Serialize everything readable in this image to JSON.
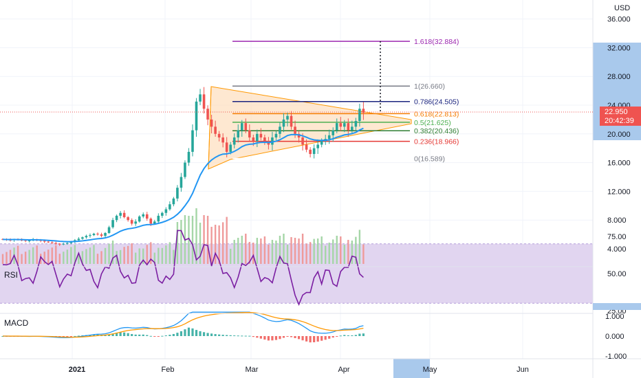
{
  "currency": "USD",
  "price": {
    "y_ticks": [
      "36.000",
      "32.000",
      "28.000",
      "24.000",
      "20.000",
      "16.000",
      "12.000",
      "8.000",
      "4.000"
    ],
    "highlight_range_labels": [
      "32.000",
      "24.000",
      "20.000"
    ],
    "current_price": "22.950",
    "countdown": "20:42:39"
  },
  "rsi": {
    "label": "RSI",
    "ticks": [
      "75.00",
      "50.00",
      "25.00"
    ],
    "band": [
      30,
      70
    ]
  },
  "macd": {
    "label": "MACD",
    "ticks": [
      "1.000",
      "0.000",
      "-1.000"
    ]
  },
  "x_ticks": [
    "2021",
    "Feb",
    "Mar",
    "Apr",
    "May",
    "Jun"
  ],
  "fib_levels": [
    {
      "label": "1.618(32.884)",
      "value": 32.884,
      "color": "#9c27b0"
    },
    {
      "label": "1(26.660)",
      "value": 26.66,
      "color": "#787b86"
    },
    {
      "label": "0.786(24.505)",
      "value": 24.505,
      "color": "#1a237e"
    },
    {
      "label": "0.618(22.813)",
      "value": 22.813,
      "color": "#f57c00"
    },
    {
      "label": "0.5(21.625)",
      "value": 21.625,
      "color": "#4caf50"
    },
    {
      "label": "0.382(20.436)",
      "value": 20.436,
      "color": "#2e7d32"
    },
    {
      "label": "0.236(18.966)",
      "value": 18.966,
      "color": "#e53935"
    },
    {
      "label": "0(16.589)",
      "value": 16.589,
      "color": "#ffffff"
    }
  ],
  "colors": {
    "up": "#26a69a",
    "down": "#ef5350",
    "ma": "#2196f3",
    "rsi": "#7b1fa2",
    "macd": "#2196f3",
    "signal": "#ff9800",
    "triangle": "#ff9800"
  },
  "chart_data": {
    "type": "candlestick",
    "closes": [
      5.3,
      5.25,
      5.2,
      5.3,
      5.25,
      5.2,
      5.1,
      5.15,
      5.3,
      5.2,
      5.1,
      5.0,
      4.9,
      4.8,
      4.7,
      4.6,
      4.7,
      4.8,
      5.0,
      5.2,
      5.4,
      5.6,
      5.8,
      5.9,
      6.1,
      6.0,
      5.8,
      6.2,
      7.0,
      8.0,
      8.6,
      9.0,
      8.4,
      8.0,
      7.5,
      7.8,
      8.5,
      8.8,
      8.2,
      7.5,
      7.8,
      8.6,
      9.0,
      9.5,
      10.2,
      11.0,
      12.5,
      14.0,
      16.0,
      17.5,
      20.5,
      24.5,
      25.5,
      23.5,
      22.0,
      21.0,
      20.0,
      19.5,
      18.8,
      17.5,
      18.5,
      19.5,
      20.5,
      21.5,
      20.5,
      19.5,
      19.0,
      20.0,
      19.5,
      19.0,
      18.5,
      19.5,
      20.0,
      21.0,
      22.0,
      22.5,
      21.0,
      20.0,
      19.5,
      18.5,
      17.8,
      17.2,
      18.0,
      18.5,
      19.0,
      19.3,
      19.8,
      20.5,
      21.5,
      21.0,
      21.5,
      20.5,
      21.0,
      21.8,
      23.5,
      22.95
    ],
    "last_close": 22.95
  }
}
